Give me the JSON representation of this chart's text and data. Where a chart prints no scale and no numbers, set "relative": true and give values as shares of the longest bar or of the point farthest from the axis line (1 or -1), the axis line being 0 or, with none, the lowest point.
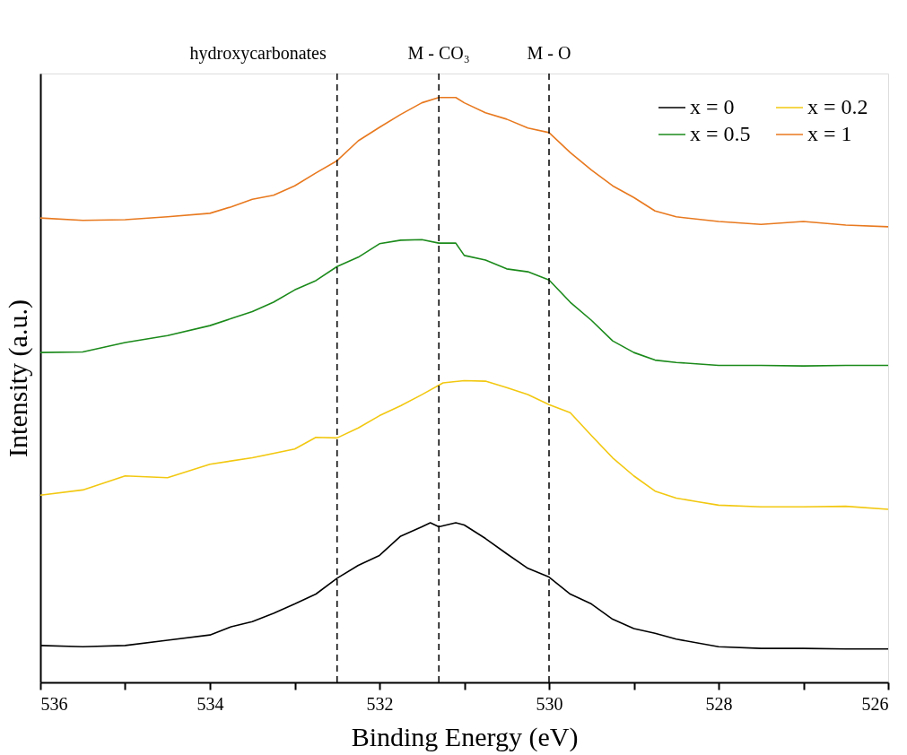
{
  "chart_data": {
    "type": "line",
    "relative": true,
    "xlabel": "Binding Energy (eV)",
    "ylabel": "Intensity (a.u.)",
    "xlim": [
      536,
      526
    ],
    "xticks": [
      536,
      {
        "value": 535,
        "label": null
      },
      534,
      {
        "value": 533,
        "label": null
      },
      532,
      {
        "value": 531,
        "label": null
      },
      530,
      {
        "value": 529,
        "label": null
      },
      528,
      {
        "value": 527,
        "label": null
      },
      526
    ],
    "grid": false,
    "legend": "top right",
    "line_style": "solid",
    "marker": "none",
    "series": [
      {
        "name": "x = 0",
        "color": "#000000",
        "x": [
          536,
          535.5,
          535,
          534.5,
          534,
          533.75,
          533.5,
          533.25,
          533,
          532.75,
          532.5,
          532.25,
          532,
          531.75,
          531.5,
          531.4,
          531.3,
          531.1,
          531,
          530.75,
          530.5,
          530.25,
          530,
          529.75,
          529.5,
          529.25,
          529,
          528.75,
          528.5,
          528,
          527.5,
          527,
          526.5,
          526
        ],
        "values": [
          0.063,
          0.061,
          0.063,
          0.072,
          0.081,
          0.095,
          0.104,
          0.118,
          0.134,
          0.151,
          0.178,
          0.2,
          0.217,
          0.25,
          0.266,
          0.273,
          0.266,
          0.273,
          0.269,
          0.246,
          0.22,
          0.195,
          0.18,
          0.151,
          0.134,
          0.108,
          0.092,
          0.084,
          0.074,
          0.061,
          0.058,
          0.058,
          0.057,
          0.057
        ]
      },
      {
        "name": "x = 0.2",
        "color": "#f2c811",
        "x": [
          536,
          535.5,
          535,
          534.5,
          534,
          533.5,
          533,
          532.75,
          532.5,
          532.25,
          532,
          531.75,
          531.5,
          531.25,
          531,
          530.75,
          530.5,
          530.25,
          530,
          529.75,
          529.5,
          529.25,
          529,
          528.75,
          528.5,
          528.25,
          528,
          527.5,
          527,
          526.5,
          526
        ],
        "values": [
          0.32,
          0.329,
          0.353,
          0.35,
          0.373,
          0.384,
          0.399,
          0.419,
          0.418,
          0.435,
          0.456,
          0.473,
          0.492,
          0.512,
          0.516,
          0.515,
          0.504,
          0.492,
          0.475,
          0.461,
          0.422,
          0.384,
          0.353,
          0.327,
          0.315,
          0.309,
          0.303,
          0.3,
          0.3,
          0.301,
          0.296
        ]
      },
      {
        "name": "x = 0.5",
        "color": "#1b8a1b",
        "x": [
          536,
          535.5,
          535,
          534.5,
          534,
          533.75,
          533.5,
          533.25,
          533,
          532.75,
          532.5,
          532.25,
          532,
          531.75,
          531.5,
          531.3,
          531.1,
          531,
          530.75,
          530.5,
          530.25,
          530,
          529.75,
          529.5,
          529.25,
          529,
          528.75,
          528.5,
          528,
          527.5,
          527,
          526.5,
          526
        ],
        "values": [
          0.564,
          0.565,
          0.581,
          0.593,
          0.61,
          0.622,
          0.634,
          0.65,
          0.671,
          0.687,
          0.711,
          0.727,
          0.75,
          0.756,
          0.757,
          0.751,
          0.751,
          0.73,
          0.722,
          0.707,
          0.702,
          0.688,
          0.65,
          0.619,
          0.584,
          0.564,
          0.551,
          0.547,
          0.542,
          0.542,
          0.541,
          0.542,
          0.542
        ]
      },
      {
        "name": "x = 1",
        "color": "#e8791f",
        "x": [
          536,
          535.5,
          535,
          534.5,
          534,
          533.75,
          533.5,
          533.25,
          533,
          532.75,
          532.5,
          532.25,
          532,
          531.75,
          531.5,
          531.3,
          531.1,
          531,
          530.75,
          530.5,
          530.25,
          530,
          529.75,
          529.5,
          529.25,
          529,
          528.75,
          528.5,
          528,
          527.5,
          527,
          526.5,
          526
        ],
        "values": [
          0.794,
          0.79,
          0.791,
          0.796,
          0.802,
          0.813,
          0.826,
          0.833,
          0.849,
          0.871,
          0.892,
          0.926,
          0.949,
          0.971,
          0.991,
          1,
          1,
          0.991,
          0.974,
          0.963,
          0.948,
          0.94,
          0.906,
          0.876,
          0.849,
          0.829,
          0.806,
          0.796,
          0.788,
          0.783,
          0.788,
          0.782,
          0.779
        ]
      }
    ],
    "ref_lines": [
      {
        "axis": "x",
        "value": 532.5,
        "label": "hydroxycarbonates",
        "color": "#000000",
        "line_style": "dashed"
      },
      {
        "axis": "x",
        "value": 531.3,
        "label": "M - CO₃",
        "color": "#000000",
        "line_style": "dashed"
      },
      {
        "axis": "x",
        "value": 530,
        "label": "M - O",
        "color": "#000000",
        "line_style": "dashed"
      }
    ]
  }
}
